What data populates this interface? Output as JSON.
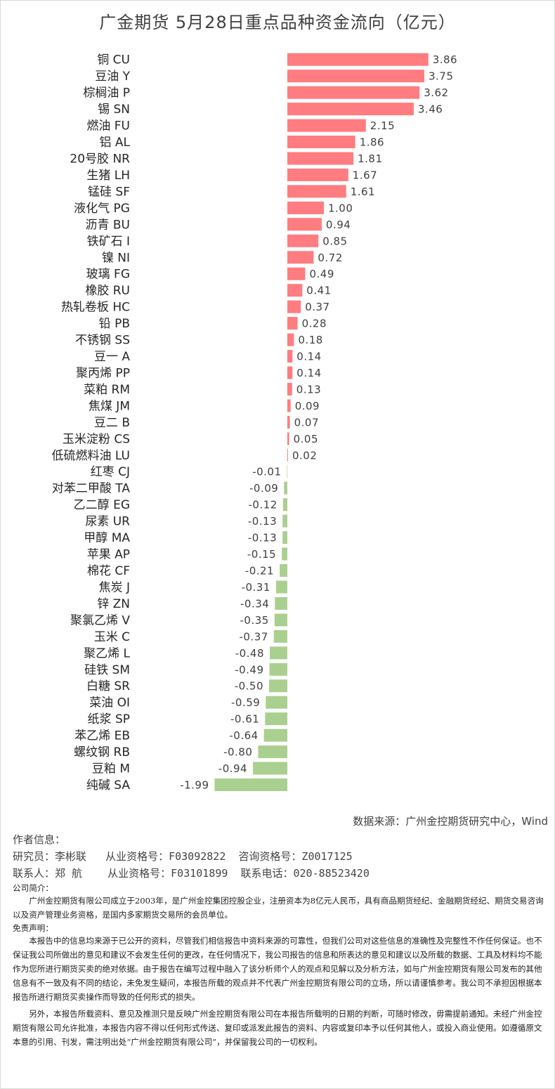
{
  "title": "广金期货 5月28日重点品种资金流向（亿元）",
  "chart_data": {
    "type": "bar",
    "orientation": "horizontal",
    "positive_color": "#FF7C80",
    "negative_color": "#A9D08E",
    "categories": [
      "铜 CU",
      "豆油 Y",
      "棕榈油 P",
      "锡 SN",
      "燃油 FU",
      "铝 AL",
      "20号胶 NR",
      "生猪 LH",
      "锰硅 SF",
      "液化气 PG",
      "沥青 BU",
      "铁矿石 I",
      "镍 NI",
      "玻璃 FG",
      "橡胶 RU",
      "热轧卷板 HC",
      "铅 PB",
      "不锈钢 SS",
      "豆一 A",
      "聚丙烯 PP",
      "菜粕 RM",
      "焦煤 JM",
      "豆二 B",
      "玉米淀粉 CS",
      "低硫燃料油 LU",
      "红枣 CJ",
      "对苯二甲酸 TA",
      "乙二醇 EG",
      "尿素 UR",
      "甲醇 MA",
      "苹果 AP",
      "棉花 CF",
      "焦炭 J",
      "锌 ZN",
      "聚氯乙烯 V",
      "玉米 C",
      "聚乙烯 L",
      "硅铁 SM",
      "白糖 SR",
      "菜油 OI",
      "纸浆 SP",
      "苯乙烯 EB",
      "螺纹钢 RB",
      "豆粕 M",
      "纯碱 SA"
    ],
    "values": [
      3.86,
      3.75,
      3.62,
      3.46,
      2.15,
      1.86,
      1.81,
      1.67,
      1.61,
      1.0,
      0.94,
      0.85,
      0.72,
      0.49,
      0.41,
      0.37,
      0.28,
      0.18,
      0.14,
      0.14,
      0.13,
      0.09,
      0.07,
      0.05,
      0.02,
      -0.01,
      -0.09,
      -0.12,
      -0.13,
      -0.13,
      -0.15,
      -0.21,
      -0.31,
      -0.34,
      -0.35,
      -0.37,
      -0.48,
      -0.49,
      -0.5,
      -0.59,
      -0.61,
      -0.64,
      -0.8,
      -0.94,
      -1.99
    ],
    "value_labels": [
      "3.86",
      "3.75",
      "3.62",
      "3.46",
      "2.15",
      "1.86",
      "1.81",
      "1.67",
      "1.61",
      "1.00",
      "0.94",
      "0.85",
      "0.72",
      "0.49",
      "0.41",
      "0.37",
      "0.28",
      "0.18",
      "0.14",
      "0.14",
      "0.13",
      "0.09",
      "0.07",
      "0.05",
      "0.02",
      "-0.01",
      "-0.09",
      "-0.12",
      "-0.13",
      "-0.13",
      "-0.15",
      "-0.21",
      "-0.31",
      "-0.34",
      "-0.35",
      "-0.37",
      "-0.48",
      "-0.49",
      "-0.50",
      "-0.59",
      "-0.61",
      "-0.64",
      "-0.80",
      "-0.94",
      "-1.99"
    ],
    "xlim": [
      -1.99,
      3.86
    ],
    "grid": false,
    "legend": "none"
  },
  "source": "数据来源：广州金控期货研究中心，Wind",
  "author": {
    "title": "作者信息：",
    "line1": "研究员：李彬联   从业资格号：F03092822  咨询资格号：Z0017125",
    "line2": "联系人：郑 航    从业资格号：F03101899  联系电话：020-88523420"
  },
  "intro": {
    "title": "公司简介：",
    "body": "广州金控期货有限公司成立于2003年，是广州金控集团控股企业，注册资本为8亿元人民币，具有商品期货经纪、金融期货经纪、期货交易咨询以及资产管理业务资格，是国内多家期货交易所的会员单位。"
  },
  "disclaimer": {
    "title": "免责声明：",
    "body1": "本报告中的信息均来源于已公开的资料，尽管我们相信报告中资料来源的可靠性，但我们公司对这些信息的准确性及完整性不作任何保证。也不保证我公司所做出的意见和建议不会发生任何的更改，在任何情况下，我公司报告的信息和所表达的意见和建议以及所载的数据、工具及材料均不能作为您所进行期货买卖的绝对依据。由于报告在编写过程中融入了该分析师个人的观点和见解以及分析方法，如与广州金控期货有限公司发布的其他信息有不一致及有不同的结论，未免发生疑问，本报告所载的观点并不代表广州金控期货有限公司的立场，所以请谨慎参考。我公司不承担因根据本报告所进行期货买卖操作而导致的任何形式的损失。",
    "body2": "另外，本报告所载资料、意见及推测只是反映广州金控期货有限公司在本报告所载明的日期的判断，可随时修改，毋需提前通知。未经广州金控期货有限公司允许批准，本报告内容不得以任何形式传送、复印或派发此报告的资料、内容或复印本予以任何其他人，或投入商业使用。如遵循原文本意的引用、刊发，需注明出处“广州金控期货有限公司”，并保留我公司的一切权利。"
  }
}
